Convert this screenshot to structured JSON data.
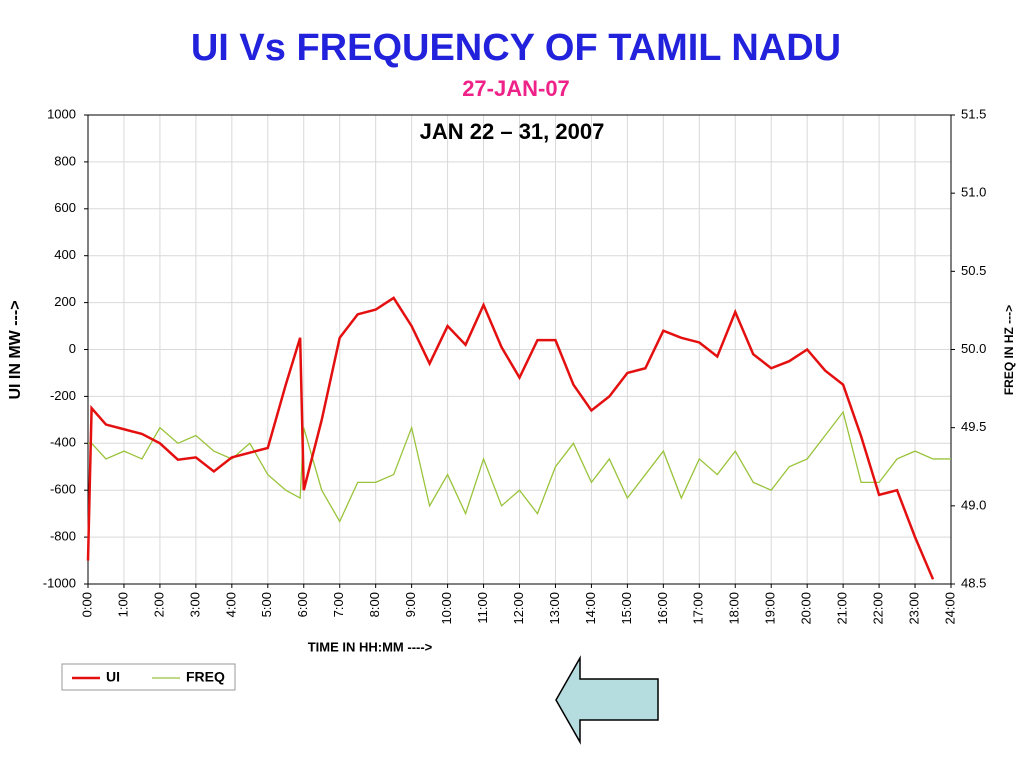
{
  "chart_data": {
    "type": "line",
    "title": "UI Vs FREQUENCY OF TAMIL NADU",
    "subtitle": "27-JAN-07",
    "annotation": "JAN 22 – 31, 2007",
    "x_label": "TIME IN HH:MM  ---->",
    "y_label": "UI IN MW  --->",
    "y2_label": "FREQ IN HZ  --->",
    "grid": true,
    "legend": "bottom-left",
    "x": [
      0,
      0.1,
      0.5,
      1,
      1.5,
      2,
      2.5,
      3,
      3.5,
      4,
      4.5,
      5,
      5.5,
      5.9,
      6,
      6.5,
      7,
      7.5,
      8,
      8.5,
      9,
      9.5,
      10,
      10.5,
      11,
      11.5,
      12,
      12.5,
      13,
      13.5,
      14,
      14.5,
      15,
      15.5,
      16,
      16.5,
      17,
      17.5,
      18,
      18.5,
      19,
      19.5,
      20,
      20.5,
      21,
      21.5,
      22,
      22.5,
      23,
      23.5,
      24
    ],
    "xlim": [
      0,
      24
    ],
    "xticks": [
      {
        "value": 0,
        "label": "0:00"
      },
      {
        "value": 1,
        "label": "1:00"
      },
      {
        "value": 2,
        "label": "2:00"
      },
      {
        "value": 3,
        "label": "3:00"
      },
      {
        "value": 4,
        "label": "4:00"
      },
      {
        "value": 5,
        "label": "5:00"
      },
      {
        "value": 6,
        "label": "6:00"
      },
      {
        "value": 7,
        "label": "7:00"
      },
      {
        "value": 8,
        "label": "8:00"
      },
      {
        "value": 9,
        "label": "9:00"
      },
      {
        "value": 10,
        "label": "10:00"
      },
      {
        "value": 11,
        "label": "11:00"
      },
      {
        "value": 12,
        "label": "12:00"
      },
      {
        "value": 13,
        "label": "13:00"
      },
      {
        "value": 14,
        "label": "14:00"
      },
      {
        "value": 15,
        "label": "15:00"
      },
      {
        "value": 16,
        "label": "16:00"
      },
      {
        "value": 17,
        "label": "17:00"
      },
      {
        "value": 18,
        "label": "18:00"
      },
      {
        "value": 19,
        "label": "19:00"
      },
      {
        "value": 20,
        "label": "20:00"
      },
      {
        "value": 21,
        "label": "21:00"
      },
      {
        "value": 22,
        "label": "22:00"
      },
      {
        "value": 23,
        "label": "23:00"
      },
      {
        "value": 24,
        "label": "24:00"
      }
    ],
    "ylim": [
      -1000,
      1000
    ],
    "yticks": [
      -1000,
      -800,
      -600,
      -400,
      -200,
      0,
      200,
      400,
      600,
      800,
      1000
    ],
    "y2lim": [
      48.5,
      51.5
    ],
    "y2ticks": [
      48.5,
      {
        "value": 49,
        "label": "49.0"
      },
      49.5,
      {
        "value": 50,
        "label": "50.0"
      },
      50.5,
      {
        "value": 51,
        "label": "51.0"
      },
      51.5
    ],
    "series": [
      {
        "name": "UI",
        "color": "#e41010",
        "axis": "y",
        "values": [
          -900,
          -250,
          -320,
          -340,
          -360,
          -400,
          -470,
          -460,
          -520,
          -460,
          -440,
          -420,
          -150,
          50,
          -600,
          -300,
          50,
          150,
          170,
          220,
          100,
          -60,
          100,
          20,
          190,
          10,
          -120,
          40,
          40,
          -150,
          -260,
          -200,
          -100,
          -80,
          80,
          50,
          30,
          -30,
          160,
          -20,
          -80,
          -50,
          0,
          -90,
          -150,
          -370,
          -620,
          -600,
          -800,
          -980,
          null
        ]
      },
      {
        "name": "FREQ",
        "color": "#99c33a",
        "axis": "y2",
        "values": [
          49.4,
          49.4,
          49.3,
          49.35,
          49.3,
          49.5,
          49.4,
          49.45,
          49.35,
          49.3,
          49.4,
          49.2,
          49.1,
          49.05,
          49.5,
          49.1,
          48.9,
          49.15,
          49.15,
          49.2,
          49.5,
          49.0,
          49.2,
          48.95,
          49.3,
          49.0,
          49.1,
          48.95,
          49.25,
          49.4,
          49.15,
          49.3,
          49.05,
          49.2,
          49.35,
          49.05,
          49.3,
          49.2,
          49.35,
          49.15,
          49.1,
          49.25,
          49.3,
          49.45,
          49.6,
          49.15,
          49.15,
          49.3,
          49.35,
          49.3,
          49.3
        ]
      }
    ]
  }
}
